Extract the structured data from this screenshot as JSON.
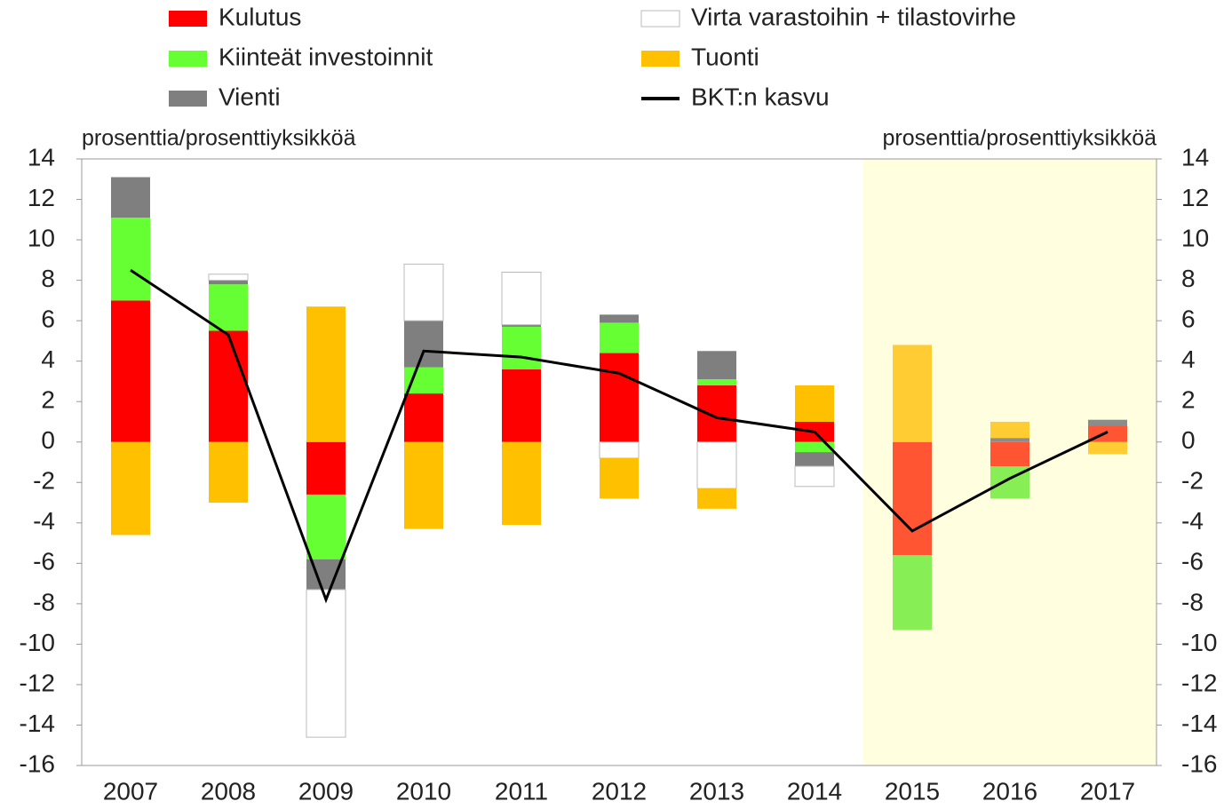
{
  "chart_data": {
    "type": "bar",
    "stacked": true,
    "unit_label_left": "prosenttia/prosenttiyksikköä",
    "unit_label_right": "prosenttia/prosenttiyksikköä",
    "categories": [
      "2007",
      "2008",
      "2009",
      "2010",
      "2011",
      "2012",
      "2013",
      "2014",
      "2015",
      "2016",
      "2017"
    ],
    "series": [
      {
        "name": "Kulutus",
        "color": "#ff0000",
        "highlight_color": "#ff5533",
        "values": [
          7.0,
          5.5,
          -2.6,
          2.4,
          3.6,
          4.4,
          2.8,
          1.0,
          -5.6,
          -1.2,
          0.8
        ]
      },
      {
        "name": "Kiinteät investoinnit",
        "color": "#66ff33",
        "highlight_color": "#88ee55",
        "values": [
          4.1,
          2.3,
          -3.2,
          1.3,
          2.1,
          1.5,
          0.3,
          -0.5,
          -3.7,
          -1.6,
          0
        ]
      },
      {
        "name": "Vienti",
        "color": "#7f7f7f",
        "highlight_color": "#8c8c8c",
        "values": [
          2.0,
          0.2,
          -1.5,
          2.3,
          0.1,
          0.4,
          1.4,
          -0.7,
          0,
          0.2,
          0.3
        ]
      },
      {
        "name": "Virta varastoihin + tilastovirhe",
        "color": "#ffffff",
        "highlight_color": "#ffffff",
        "values": [
          0,
          0.3,
          -7.3,
          2.8,
          2.6,
          -0.8,
          -2.3,
          -1.0,
          0,
          0,
          0
        ]
      },
      {
        "name": "Tuonti",
        "color": "#ffc000",
        "highlight_color": "#ffcc33",
        "values": [
          -4.6,
          -3.0,
          6.7,
          -4.3,
          -4.1,
          -2.0,
          -1.0,
          1.8,
          4.8,
          0.8,
          -0.6
        ]
      },
      {
        "name": "BKT:n kasvu",
        "type": "line",
        "color": "#000000",
        "values": [
          8.5,
          5.3,
          -7.8,
          4.5,
          4.2,
          3.4,
          1.2,
          0.5,
          -4.4,
          -1.8,
          0.5
        ]
      }
    ],
    "highlight": {
      "from": "2015",
      "color": "#ffffe0"
    },
    "ylim": [
      -16,
      14
    ],
    "yticks": [
      -16,
      -14,
      -12,
      -10,
      -8,
      -6,
      -4,
      -2,
      0,
      2,
      4,
      6,
      8,
      10,
      12,
      14
    ],
    "y2lim": [
      -16,
      14
    ],
    "y2ticks": [
      -16,
      -14,
      -12,
      -10,
      -8,
      -6,
      -4,
      -2,
      0,
      2,
      4,
      6,
      8,
      10,
      12,
      14
    ]
  }
}
